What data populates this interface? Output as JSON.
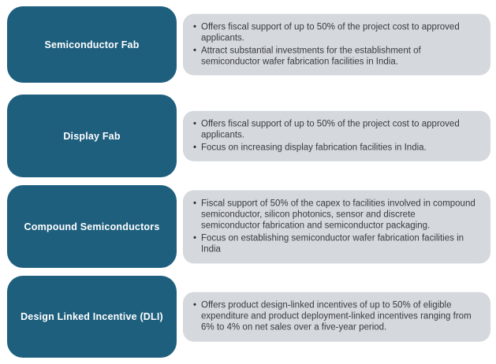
{
  "colors": {
    "label_box_background": "#1E5F7E",
    "detail_box_background": "#D5D8DC",
    "label_text": "#FFFFFF",
    "body_text": "#383B42",
    "page_background": "#FFFFFF"
  },
  "bullet_char": "•",
  "rows": [
    {
      "label": "Semiconductor Fab",
      "bullets": [
        "Offers fiscal support of up to 50% of the project cost to approved applicants.",
        "Attract substantial investments for the establishment of semiconductor wafer fabrication facilities in India."
      ]
    },
    {
      "label": "Display Fab",
      "bullets": [
        "Offers fiscal support of up to 50% of the project cost to approved applicants.",
        "Focus on increasing display fabrication facilities in India."
      ]
    },
    {
      "label": "Compound Semiconductors",
      "bullets": [
        "Fiscal support of 50% of the capex to facilities involved in compound semiconductor, silicon photonics, sensor and discrete semiconductor fabrication and semiconductor packaging.",
        "Focus on establishing semiconductor wafer fabrication facilities in India"
      ]
    },
    {
      "label": "Design Linked Incentive (DLI)",
      "bullets": [
        "Offers product design-linked incentives of up to 50% of eligible expenditure and product deployment-linked incentives ranging from 6% to 4% on net sales over a five-year period."
      ]
    }
  ]
}
